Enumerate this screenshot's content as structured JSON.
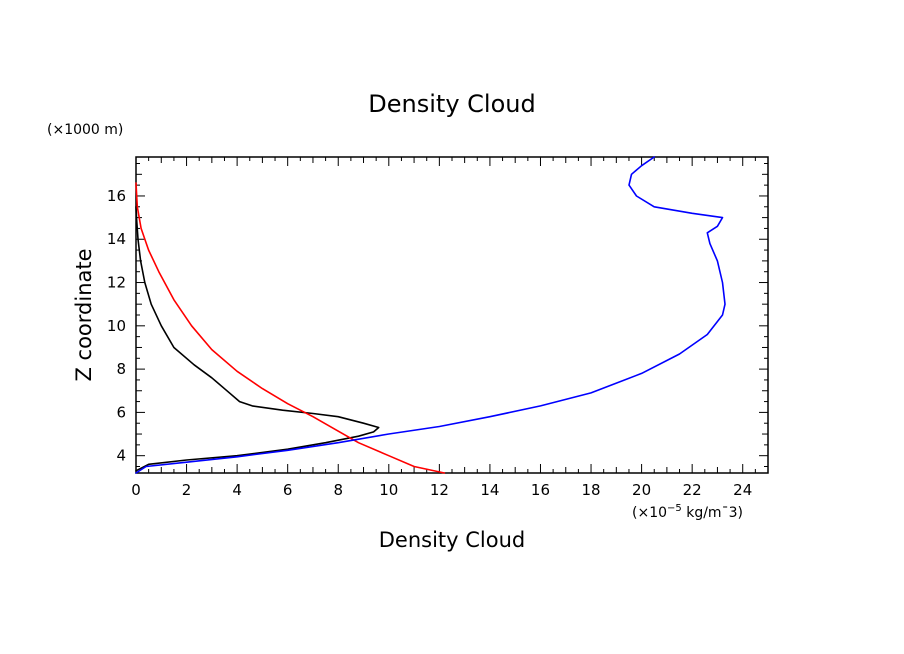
{
  "chart_data": {
    "type": "line",
    "title": "Density Cloud",
    "xlabel": "Density Cloud",
    "ylabel": "Z coordinate",
    "x_unit_prefix": "(×10",
    "x_unit_exp": "−5",
    "x_unit_suffix": " kg/m",
    "x_unit_tail": "¯3)",
    "y_unit": "(×1000 m)",
    "xlim": [
      0,
      25
    ],
    "ylim": [
      3.2,
      17.8
    ],
    "x_ticks": [
      0,
      2,
      4,
      6,
      8,
      10,
      12,
      14,
      16,
      18,
      20,
      22,
      24
    ],
    "y_ticks": [
      4,
      6,
      8,
      10,
      12,
      14,
      16
    ],
    "grid": false,
    "legend": "none",
    "series": [
      {
        "color": "#000000",
        "points": [
          [
            0.0,
            3.3
          ],
          [
            0.5,
            3.6
          ],
          [
            2.0,
            3.8
          ],
          [
            4.0,
            4.0
          ],
          [
            6.0,
            4.3
          ],
          [
            7.5,
            4.6
          ],
          [
            8.8,
            4.9
          ],
          [
            9.4,
            5.1
          ],
          [
            9.6,
            5.3
          ],
          [
            9.0,
            5.5
          ],
          [
            8.0,
            5.8
          ],
          [
            7.0,
            5.95
          ],
          [
            5.8,
            6.1
          ],
          [
            4.6,
            6.3
          ],
          [
            4.1,
            6.5
          ],
          [
            3.6,
            7.0
          ],
          [
            3.0,
            7.6
          ],
          [
            2.3,
            8.2
          ],
          [
            1.5,
            9.0
          ],
          [
            1.0,
            10.0
          ],
          [
            0.6,
            11.0
          ],
          [
            0.35,
            12.0
          ],
          [
            0.18,
            13.0
          ],
          [
            0.08,
            14.0
          ],
          [
            0.02,
            15.0
          ],
          [
            0.0,
            15.5
          ]
        ]
      },
      {
        "color": "#ff0000",
        "points": [
          [
            12.2,
            3.2
          ],
          [
            11.0,
            3.5
          ],
          [
            10.0,
            4.0
          ],
          [
            8.8,
            4.6
          ],
          [
            7.9,
            5.2
          ],
          [
            7.0,
            5.8
          ],
          [
            6.0,
            6.4
          ],
          [
            5.0,
            7.1
          ],
          [
            4.0,
            7.9
          ],
          [
            3.0,
            8.9
          ],
          [
            2.2,
            10.0
          ],
          [
            1.5,
            11.2
          ],
          [
            0.9,
            12.5
          ],
          [
            0.5,
            13.5
          ],
          [
            0.2,
            14.5
          ],
          [
            0.05,
            15.5
          ],
          [
            0.0,
            16.6
          ]
        ]
      },
      {
        "color": "#0000ff",
        "points": [
          [
            0.0,
            3.2
          ],
          [
            0.4,
            3.5
          ],
          [
            2.0,
            3.7
          ],
          [
            4.0,
            3.95
          ],
          [
            6.0,
            4.25
          ],
          [
            8.0,
            4.6
          ],
          [
            10.0,
            5.0
          ],
          [
            12.0,
            5.35
          ],
          [
            14.0,
            5.8
          ],
          [
            16.0,
            6.3
          ],
          [
            18.0,
            6.9
          ],
          [
            20.0,
            7.8
          ],
          [
            21.5,
            8.7
          ],
          [
            22.6,
            9.6
          ],
          [
            23.2,
            10.5
          ],
          [
            23.3,
            11.0
          ],
          [
            23.2,
            12.0
          ],
          [
            23.0,
            13.0
          ],
          [
            22.7,
            13.8
          ],
          [
            22.6,
            14.3
          ],
          [
            23.0,
            14.6
          ],
          [
            23.2,
            15.0
          ],
          [
            22.0,
            15.2
          ],
          [
            20.5,
            15.5
          ],
          [
            19.8,
            16.0
          ],
          [
            19.5,
            16.5
          ],
          [
            19.6,
            17.0
          ],
          [
            20.0,
            17.4
          ],
          [
            20.5,
            17.8
          ]
        ]
      }
    ]
  }
}
